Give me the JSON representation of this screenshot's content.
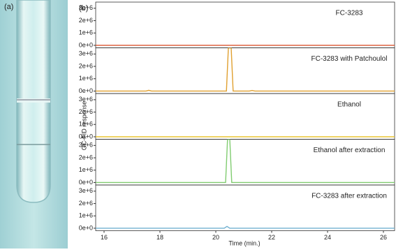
{
  "figure": {
    "panel_labels": [
      "(a)",
      "(b)"
    ],
    "ylabel": "GC-FID response",
    "xlabel": "Time (min.)"
  },
  "chart_data": [
    {
      "type": "line",
      "title": "FC-3283",
      "xlim": [
        15.7,
        26.4
      ],
      "ylim": [
        -200000,
        3500000
      ],
      "yticks": [
        {
          "value": 0,
          "label": "0e+0"
        },
        {
          "value": 1000000,
          "label": "1e+6"
        },
        {
          "value": 2000000,
          "label": "2e+6"
        },
        {
          "value": 3000000,
          "label": "3e+6"
        }
      ],
      "x": [
        15.7,
        17.6,
        20.45,
        21.3,
        26.4
      ],
      "series": [
        {
          "color": "#d9542f",
          "values": [
            0,
            0,
            0,
            0,
            0
          ]
        }
      ]
    },
    {
      "type": "line",
      "title": "FC-3283 with Patchoulol",
      "xlim": [
        15.7,
        26.4
      ],
      "ylim": [
        -200000,
        3500000
      ],
      "yticks": [
        {
          "value": 0,
          "label": "0e+0"
        },
        {
          "value": 1000000,
          "label": "1e+6"
        },
        {
          "value": 2000000,
          "label": "2e+6"
        },
        {
          "value": 3000000,
          "label": "3e+6"
        }
      ],
      "x": [
        15.7,
        17.5,
        17.6,
        17.7,
        20.38,
        20.45,
        20.55,
        20.62,
        21.2,
        21.3,
        21.4,
        26.4
      ],
      "series": [
        {
          "color": "#e0a030",
          "values": [
            0,
            0,
            60000,
            0,
            0,
            3500000,
            3500000,
            0,
            0,
            50000,
            0,
            0
          ]
        }
      ]
    },
    {
      "type": "line",
      "title": "Ethanol",
      "xlim": [
        15.7,
        26.4
      ],
      "ylim": [
        -200000,
        3500000
      ],
      "yticks": [
        {
          "value": 0,
          "label": "0e+0"
        },
        {
          "value": 1000000,
          "label": "1e+6"
        },
        {
          "value": 2000000,
          "label": "2e+6"
        },
        {
          "value": 3000000,
          "label": "3e+6"
        }
      ],
      "x": [
        15.7,
        17.6,
        20.45,
        21.3,
        26.4
      ],
      "series": [
        {
          "color": "#e8c020",
          "values": [
            0,
            0,
            0,
            0,
            0
          ]
        }
      ]
    },
    {
      "type": "line",
      "title": "Ethanol after extraction",
      "xlim": [
        15.7,
        26.4
      ],
      "ylim": [
        -200000,
        3500000
      ],
      "yticks": [
        {
          "value": 0,
          "label": "0e+0"
        },
        {
          "value": 1000000,
          "label": "1e+6"
        },
        {
          "value": 2000000,
          "label": "2e+6"
        },
        {
          "value": 3000000,
          "label": "3e+6"
        }
      ],
      "x": [
        15.7,
        20.35,
        20.42,
        20.5,
        20.57,
        26.4
      ],
      "series": [
        {
          "color": "#80cc70",
          "values": [
            0,
            0,
            3500000,
            3500000,
            0,
            0
          ]
        }
      ]
    },
    {
      "type": "line",
      "title": "FC-3283 after extraction",
      "xlim": [
        15.7,
        26.4
      ],
      "ylim": [
        -200000,
        3500000
      ],
      "yticks": [
        {
          "value": 0,
          "label": "0e+0"
        },
        {
          "value": 1000000,
          "label": "1e+6"
        },
        {
          "value": 2000000,
          "label": "2e+6"
        },
        {
          "value": 3000000,
          "label": "3e+6"
        }
      ],
      "xticks": [
        16,
        18,
        20,
        22,
        24,
        26
      ],
      "x": [
        15.7,
        20.3,
        20.4,
        20.5,
        26.4
      ],
      "series": [
        {
          "color": "#70b0d0",
          "values": [
            0,
            0,
            150000,
            0,
            0
          ]
        }
      ]
    }
  ]
}
